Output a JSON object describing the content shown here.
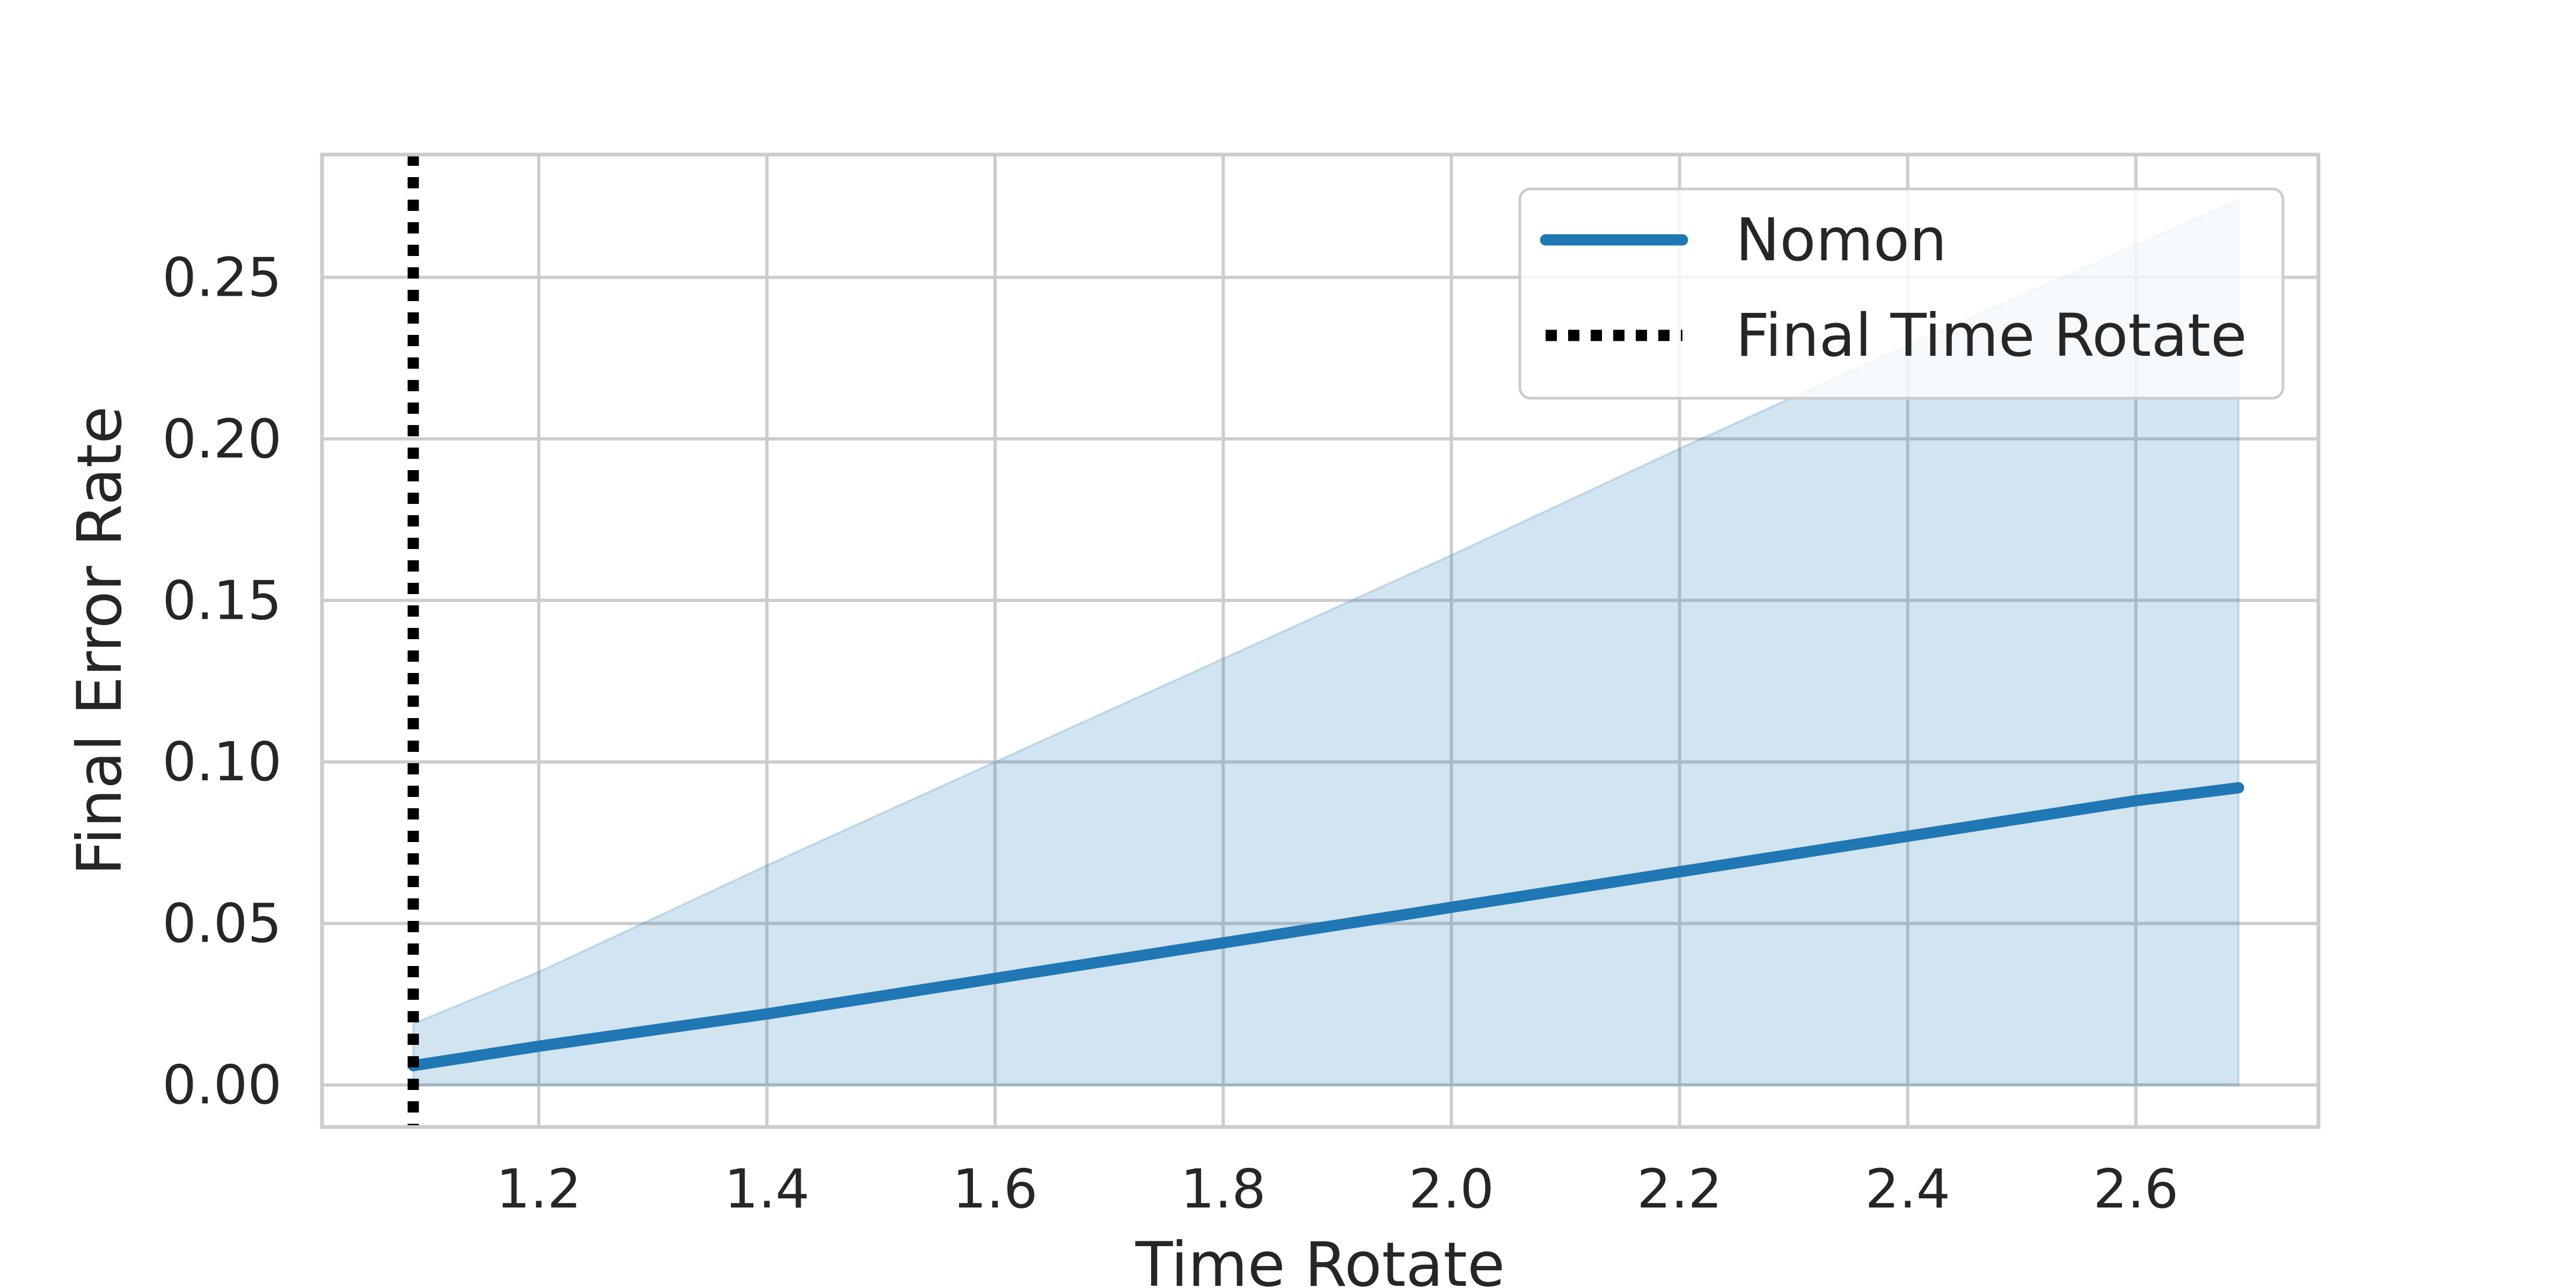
{
  "chart_data": {
    "type": "line",
    "title": "",
    "xlabel": "Time Rotate",
    "ylabel": "Final Error Rate",
    "xlim": [
      1.01,
      2.76
    ],
    "ylim": [
      -0.013,
      0.288
    ],
    "xticks": [
      1.2,
      1.4,
      1.6,
      1.8,
      2.0,
      2.2,
      2.4,
      2.6
    ],
    "xtick_labels": [
      "1.2",
      "1.4",
      "1.6",
      "1.8",
      "2.0",
      "2.2",
      "2.4",
      "2.6"
    ],
    "yticks": [
      0.0,
      0.05,
      0.1,
      0.15,
      0.2,
      0.25
    ],
    "ytick_labels": [
      "0.00",
      "0.05",
      "0.10",
      "0.15",
      "0.20",
      "0.25"
    ],
    "grid": true,
    "legend_position": "top-right",
    "series": [
      {
        "name": "Nomon",
        "color": "#1f77b4",
        "x": [
          1.09,
          1.2,
          1.4,
          1.6,
          1.8,
          2.0,
          2.2,
          2.4,
          2.6,
          2.69
        ],
        "y": [
          0.006,
          0.012,
          0.022,
          0.033,
          0.044,
          0.055,
          0.066,
          0.077,
          0.088,
          0.092
        ],
        "band_lower": [
          0.0,
          0.0,
          0.0,
          0.0,
          0.0,
          0.0,
          0.0,
          0.0,
          0.0,
          0.0
        ],
        "band_upper": [
          0.019,
          0.035,
          0.068,
          0.1,
          0.132,
          0.164,
          0.197,
          0.229,
          0.26,
          0.274
        ]
      }
    ],
    "vline": {
      "name": "Final Time Rotate",
      "x": 1.09,
      "color": "#000000",
      "style": "dotted"
    }
  }
}
